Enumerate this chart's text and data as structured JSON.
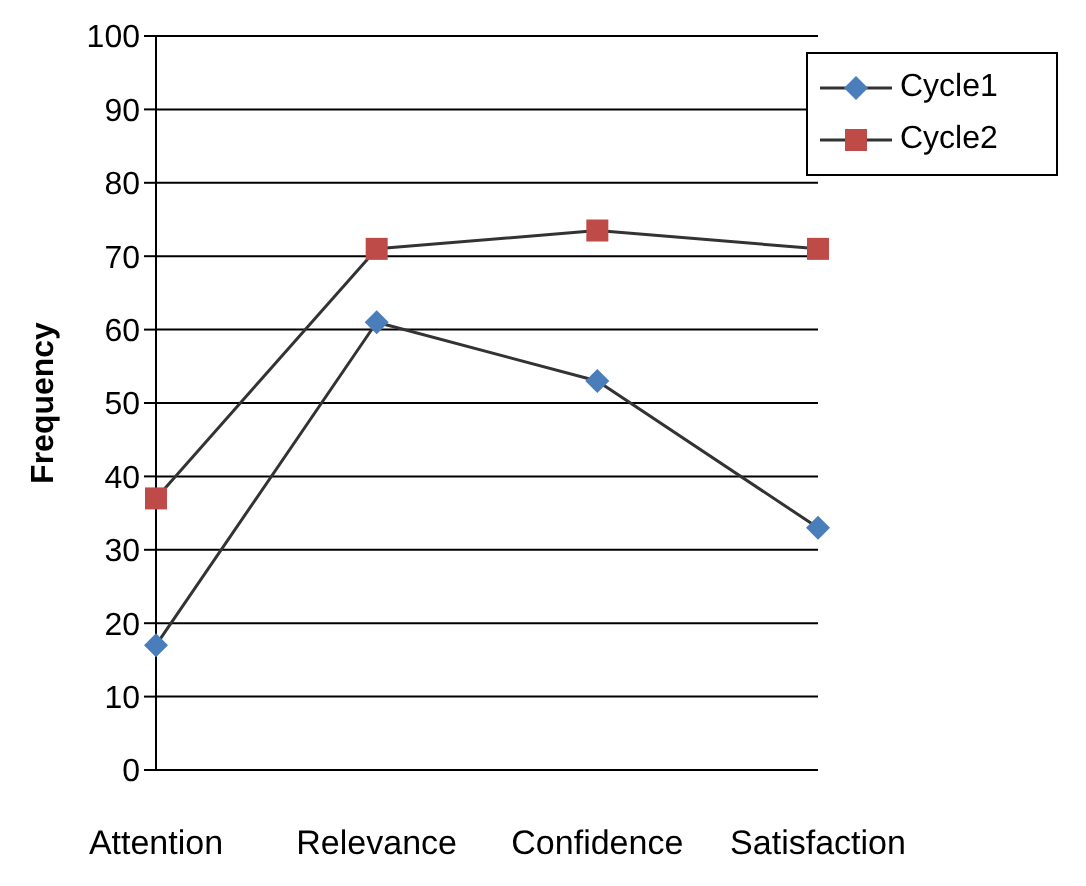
{
  "chart_data": {
    "type": "line",
    "ylabel": "Frequency",
    "categories": [
      "Attention",
      "Relevance",
      "Confidence",
      "Satisfaction"
    ],
    "series": [
      {
        "name": "Cycle1",
        "color": "#4a7ebb",
        "marker": "diamond",
        "values": [
          17,
          61,
          53,
          33
        ]
      },
      {
        "name": "Cycle2",
        "color": "#be4b48",
        "marker": "square",
        "values": [
          37,
          71,
          73.5,
          71
        ]
      }
    ],
    "ylim": [
      0,
      100
    ],
    "yticks": [
      0,
      10,
      20,
      30,
      40,
      50,
      60,
      70,
      80,
      90,
      100
    ],
    "grid": "y",
    "legend": "top right"
  }
}
